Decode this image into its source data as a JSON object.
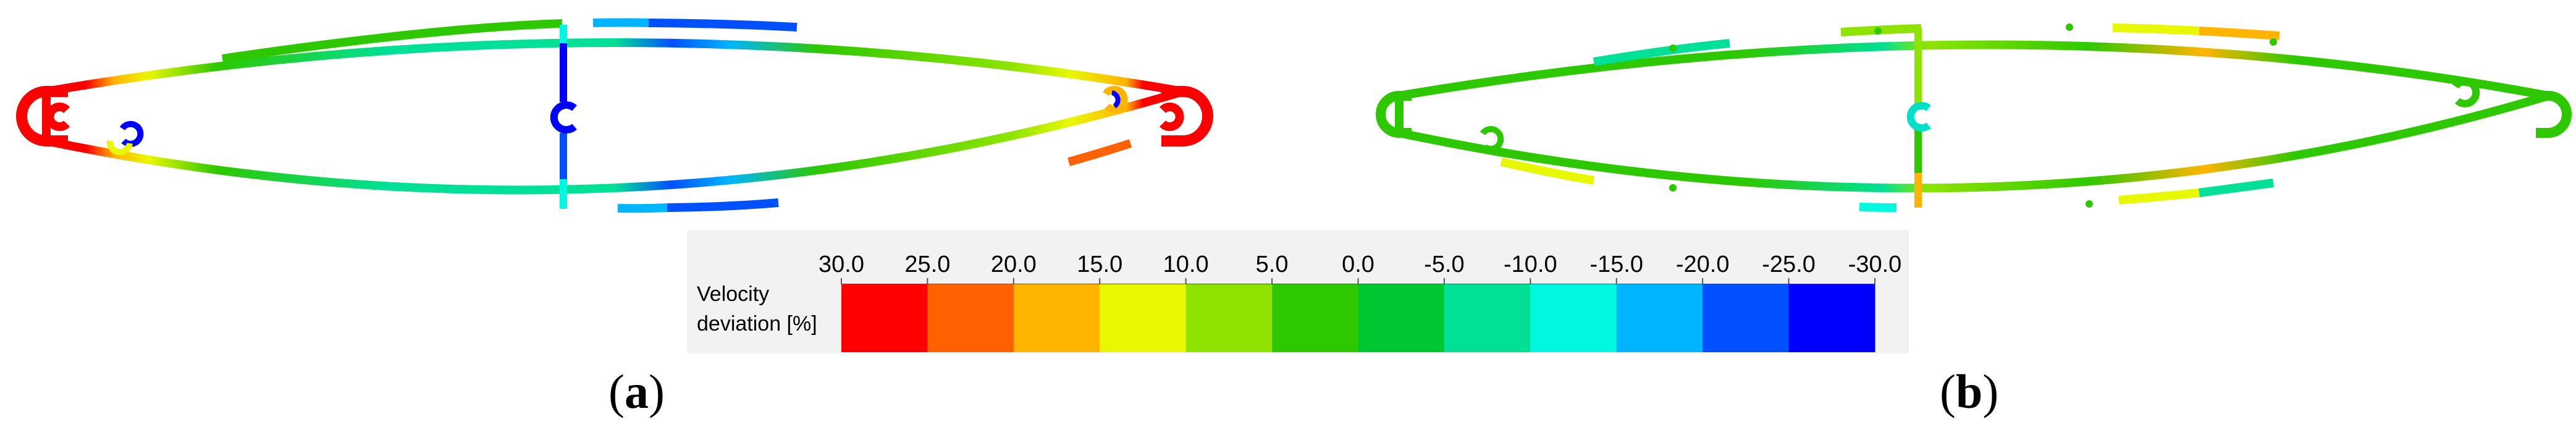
{
  "legend": {
    "title_line1": "Velocity",
    "title_line2": "deviation [%]",
    "ticks": [
      "30.0",
      "25.0",
      "20.0",
      "15.0",
      "10.0",
      "5.0",
      "0.0",
      "-5.0",
      "-10.0",
      "-15.0",
      "-20.0",
      "-25.0",
      "-30.0"
    ],
    "bins": [
      {
        "color": "#ff0000"
      },
      {
        "color": "#ff6000"
      },
      {
        "color": "#ffb400"
      },
      {
        "color": "#e8f800"
      },
      {
        "color": "#8ee400"
      },
      {
        "color": "#2ec800"
      },
      {
        "color": "#00c832"
      },
      {
        "color": "#00e096"
      },
      {
        "color": "#00f8e0"
      },
      {
        "color": "#00b4ff"
      },
      {
        "color": "#0050ff"
      },
      {
        "color": "#0000ff"
      }
    ]
  },
  "panels": [
    {
      "label": "a"
    },
    {
      "label": "b"
    }
  ]
}
